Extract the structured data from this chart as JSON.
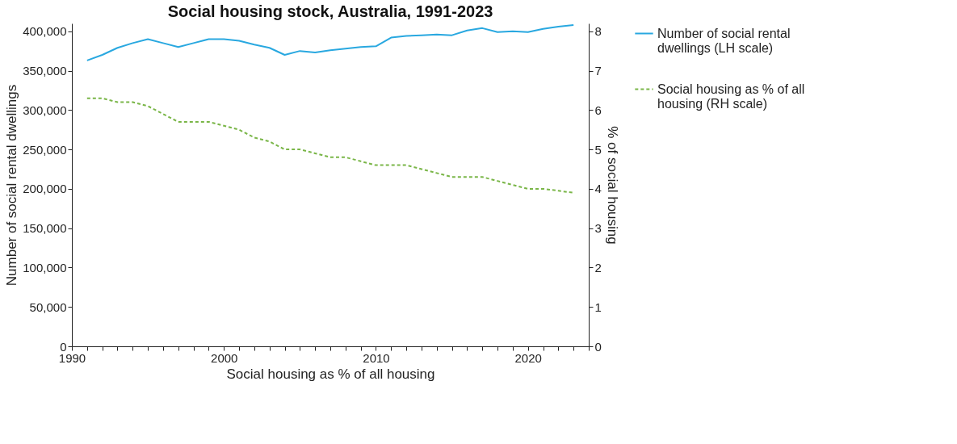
{
  "chart_data": {
    "type": "line",
    "title": "Social housing stock, Australia, 1991-2023",
    "xlabel": "Social housing as % of all housing",
    "ylabel": "Number of social rental dwellings",
    "y2label": "% of social housing",
    "x": [
      1991,
      1992,
      1993,
      1994,
      1995,
      1996,
      1997,
      1998,
      1999,
      2000,
      2001,
      2002,
      2003,
      2004,
      2005,
      2006,
      2007,
      2008,
      2009,
      2010,
      2011,
      2012,
      2013,
      2014,
      2015,
      2016,
      2017,
      2018,
      2019,
      2020,
      2021,
      2022,
      2023
    ],
    "xlim": [
      1990,
      2024
    ],
    "xticks": [
      1990,
      {
        "value": 1991,
        "label": null
      },
      {
        "value": 1992,
        "label": null
      },
      {
        "value": 1993,
        "label": null
      },
      {
        "value": 1994,
        "label": null
      },
      {
        "value": 1995,
        "label": null
      },
      {
        "value": 1996,
        "label": null
      },
      {
        "value": 1997,
        "label": null
      },
      {
        "value": 1998,
        "label": null
      },
      {
        "value": 1999,
        "label": null
      },
      2000,
      {
        "value": 2001,
        "label": null
      },
      {
        "value": 2002,
        "label": null
      },
      {
        "value": 2003,
        "label": null
      },
      {
        "value": 2004,
        "label": null
      },
      {
        "value": 2005,
        "label": null
      },
      {
        "value": 2006,
        "label": null
      },
      {
        "value": 2007,
        "label": null
      },
      {
        "value": 2008,
        "label": null
      },
      {
        "value": 2009,
        "label": null
      },
      2010,
      {
        "value": 2011,
        "label": null
      },
      {
        "value": 2012,
        "label": null
      },
      {
        "value": 2013,
        "label": null
      },
      {
        "value": 2014,
        "label": null
      },
      {
        "value": 2015,
        "label": null
      },
      {
        "value": 2016,
        "label": null
      },
      {
        "value": 2017,
        "label": null
      },
      {
        "value": 2018,
        "label": null
      },
      {
        "value": 2019,
        "label": null
      },
      2020,
      {
        "value": 2021,
        "label": null
      },
      {
        "value": 2022,
        "label": null
      },
      {
        "value": 2023,
        "label": null
      },
      {
        "value": 2024,
        "label": null
      }
    ],
    "ylim": [
      0,
      410000
    ],
    "yticks": [
      {
        "value": 0,
        "label": "0"
      },
      {
        "value": 50000,
        "label": "50,000"
      },
      {
        "value": 100000,
        "label": "100,000"
      },
      {
        "value": 150000,
        "label": "150,000"
      },
      {
        "value": 200000,
        "label": "200,000"
      },
      {
        "value": 250000,
        "label": "250,000"
      },
      {
        "value": 300000,
        "label": "300,000"
      },
      {
        "value": 350000,
        "label": "350,000"
      },
      {
        "value": 400000,
        "label": "400,000"
      }
    ],
    "y2lim": [
      0,
      8.2
    ],
    "y2ticks": [
      0,
      1,
      2,
      3,
      4,
      5,
      6,
      7,
      8
    ],
    "series": [
      {
        "name": "Number of social rental dwellings (LH scale)",
        "color": "#29a8e0",
        "line_style": "solid",
        "values": [
          363000,
          370000,
          379000,
          385000,
          390000,
          385000,
          380000,
          385000,
          390000,
          390000,
          388000,
          383000,
          379000,
          370000,
          375000,
          373000,
          376000,
          378000,
          380000,
          381000,
          392000,
          394000,
          395000,
          396000,
          395000,
          401000,
          404000,
          399000,
          400000,
          399000,
          403000,
          406000,
          408000
        ]
      },
      {
        "name": "Social housing as % of all housing (RH scale)",
        "color": "#7ab648",
        "line_style": "dashed",
        "axis": "y2",
        "values": [
          6.3,
          6.3,
          6.2,
          6.2,
          6.1,
          5.9,
          5.7,
          5.7,
          5.7,
          5.6,
          5.5,
          5.3,
          5.2,
          5.0,
          5.0,
          4.9,
          4.8,
          4.8,
          4.7,
          4.6,
          4.6,
          4.6,
          4.5,
          4.4,
          4.3,
          4.3,
          4.3,
          4.2,
          4.1,
          4.0,
          4.0,
          3.95,
          3.9
        ]
      }
    ],
    "grid": false,
    "legend": "right",
    "marker": "none"
  }
}
